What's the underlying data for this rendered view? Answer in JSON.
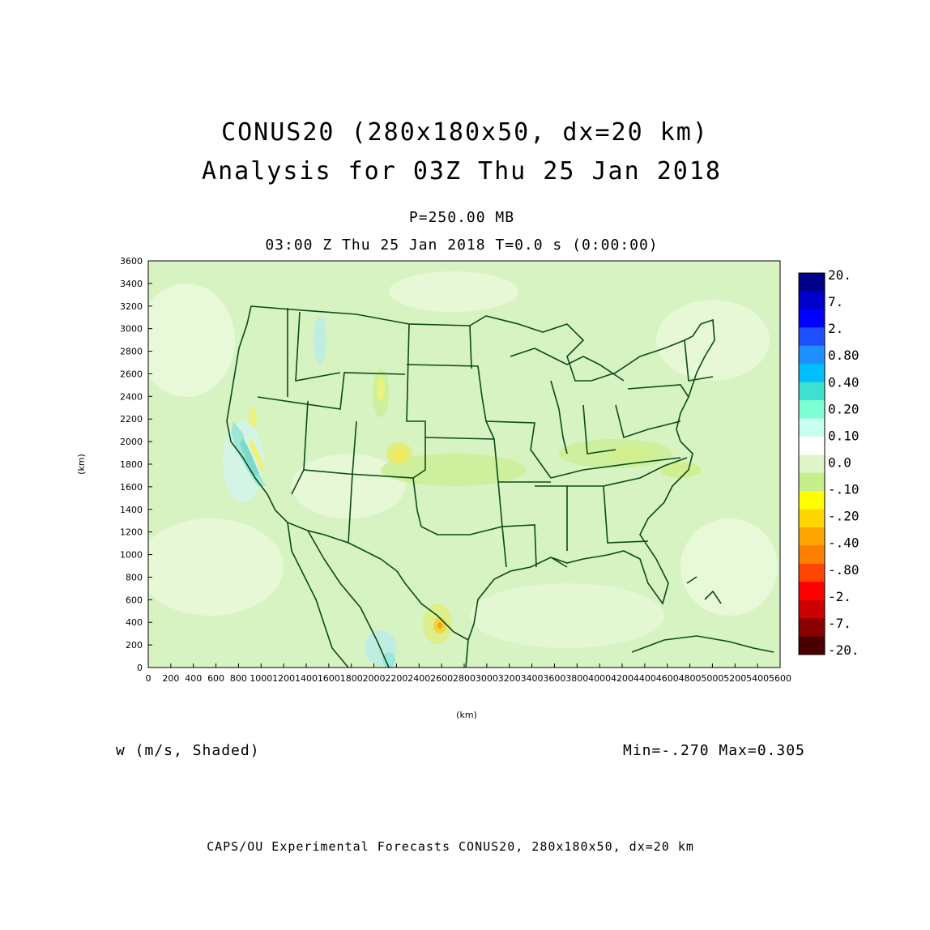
{
  "title_line1": "CONUS20 (280x180x50, dx=20 km)",
  "title_line2": "Analysis for 03Z Thu 25 Jan 2018",
  "level_label": "P=250.00 MB",
  "time_label": "03:00 Z Thu 25 Jan 2018   T=0.0 s (0:00:00)",
  "variable_label": "w (m/s, Shaded)",
  "minmax_label": "Min=-.270  Max=0.305",
  "footer": "CAPS/OU Experimental Forecasts  CONUS20, 280x180x50, dx=20 km",
  "map_data": {
    "x_axis_label": "(km)",
    "y_axis_label": "(km)",
    "x_range_km": [
      0,
      5600
    ],
    "y_range_km": [
      0,
      3600
    ],
    "x_ticks": [
      0,
      200,
      400,
      600,
      800,
      1000,
      1200,
      1400,
      1600,
      1800,
      2000,
      2200,
      2400,
      2600,
      2800,
      3000,
      3200,
      3400,
      3600,
      3800,
      4000,
      4200,
      4400,
      4600,
      4800,
      5000,
      5200,
      5400,
      5600
    ],
    "y_ticks": [
      0,
      200,
      400,
      600,
      800,
      1000,
      1200,
      1400,
      1600,
      1800,
      2000,
      2200,
      2400,
      2600,
      2800,
      3000,
      3200,
      3400,
      3600
    ],
    "field": "w",
    "units": "m/s",
    "boundary_color": "#0b4a1a",
    "background_color": "#d9f5c4"
  },
  "colorbar": {
    "labels": [
      "20.",
      "7.",
      "2.",
      "0.80",
      "0.40",
      "0.20",
      "0.10",
      "0.0",
      "-.10",
      "-.20",
      "-.40",
      "-.80",
      "-2.",
      "-7.",
      "-20."
    ],
    "colors": [
      "#00008b",
      "#0000cd",
      "#0000ff",
      "#1e50ff",
      "#1e90ff",
      "#00bfff",
      "#40e0d0",
      "#7fffd4",
      "#c8fff0",
      "#ffffff",
      "#dff5c8",
      "#c4ef8a",
      "#ffff00",
      "#ffd700",
      "#ffa500",
      "#ff7f00",
      "#ff4500",
      "#ff0000",
      "#cd0000",
      "#8b0000",
      "#4b0000"
    ]
  }
}
